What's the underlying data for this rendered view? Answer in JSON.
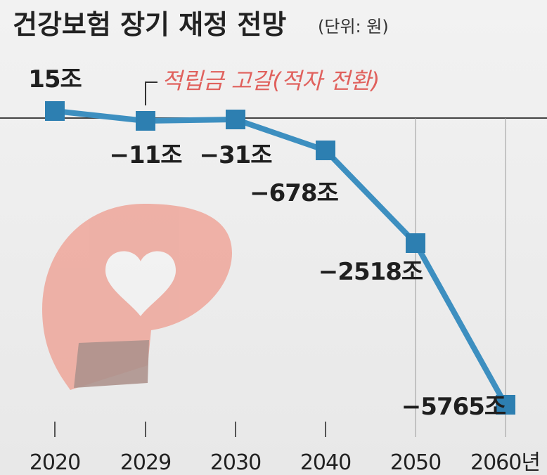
{
  "chart_data": {
    "type": "line",
    "title": "건강보험 장기 재정 전망",
    "unit_label": "(단위: 원)",
    "categories": [
      "2020",
      "2029",
      "2030",
      "2040",
      "2050",
      "2060년"
    ],
    "series": [
      {
        "values": [
          15,
          -11,
          -31,
          -678,
          -2518,
          -5765
        ],
        "labels": [
          "15조",
          "−11조",
          "−31조",
          "−678조",
          "−2518조",
          "−5765조"
        ]
      }
    ],
    "annotation": "적립금 고갈(적자 전환)",
    "ylim": [
      -5765,
      15
    ],
    "colors": {
      "line": "#3d8fc0",
      "marker": "#2d7fb1",
      "annotation": "#e0615d"
    }
  }
}
